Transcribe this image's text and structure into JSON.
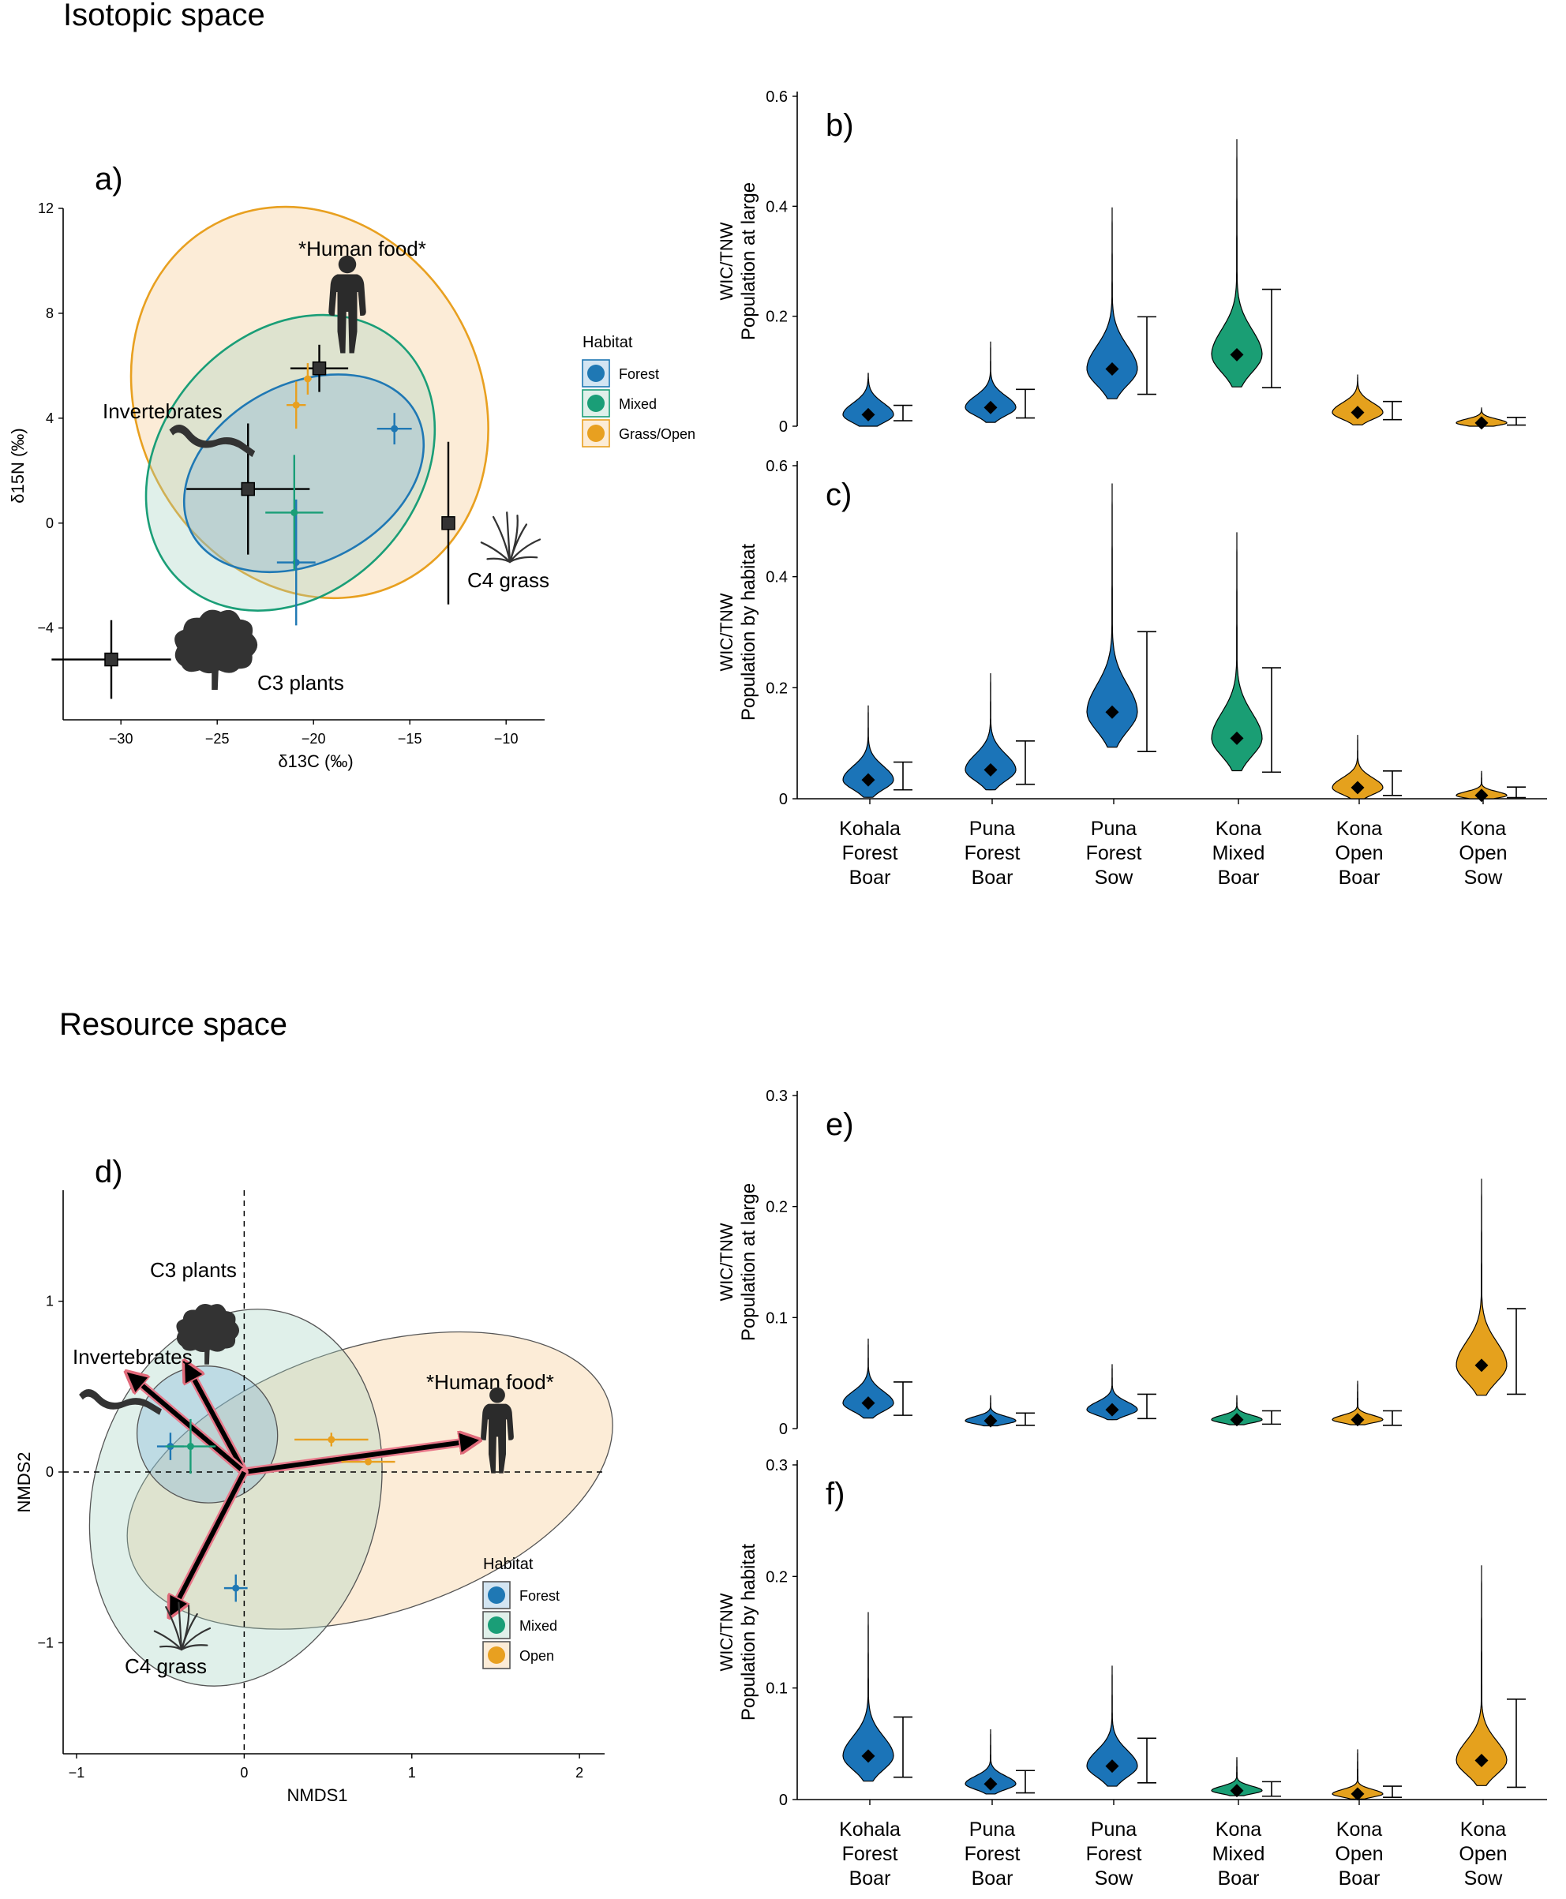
{
  "sections": {
    "isotopic_title": "Isotopic space",
    "resource_title": "Resource space"
  },
  "colors": {
    "forest": "#1f78b4",
    "mixed": "#1a9e77",
    "open": "#e8a020",
    "violin_forest": "#1b74b8",
    "violin_mixed": "#1a9e74",
    "violin_open": "#e5a11d"
  },
  "chart_data": [
    {
      "id": "a",
      "type": "scatter",
      "panel_label": "a)",
      "xlabel": "δ13C (‰)",
      "ylabel": "δ15N (‰)",
      "xlim": [
        -33,
        -8
      ],
      "ylim": [
        -7.5,
        12
      ],
      "xticks": [
        "−30",
        "−25",
        "−20",
        "−15",
        "−10"
      ],
      "yticks": [
        "−4",
        "0",
        "4",
        "8",
        "12"
      ],
      "xtick_values": [
        -30,
        -25,
        -20,
        -15,
        -10
      ],
      "ytick_values": [
        -4,
        0,
        4,
        8,
        12
      ],
      "legend": {
        "title": "Habitat",
        "items": [
          "Forest",
          "Mixed",
          "Grass/Open"
        ]
      },
      "ellipses": [
        {
          "habitat": "open",
          "cx": -20.2,
          "cy": 4.6,
          "rx": 8.9,
          "ry": 7.7,
          "angle": 28
        },
        {
          "habitat": "mixed",
          "cx": -21.2,
          "cy": 2.3,
          "rx": 8.4,
          "ry": 4.9,
          "angle": 48
        },
        {
          "habitat": "forest",
          "cx": -20.5,
          "cy": 1.9,
          "rx": 6.6,
          "ry": 3.4,
          "angle": 28
        }
      ],
      "sources": [
        {
          "name": "*Human food*",
          "x": -19.7,
          "y": 5.9,
          "xerr": 1.5,
          "yerr": 0.9
        },
        {
          "name": "Invertebrates",
          "x": -23.4,
          "y": 1.3,
          "xerr": 3.2,
          "yerr": 2.5
        },
        {
          "name": "C4 grass",
          "x": -13.0,
          "y": 0.0,
          "xerr": 0.2,
          "yerr": 3.1
        },
        {
          "name": "C3 plants",
          "x": -30.5,
          "y": -5.2,
          "xerr": 3.1,
          "yerr": 1.5
        }
      ],
      "points": [
        {
          "habitat": "forest",
          "x": -15.8,
          "y": 3.6,
          "xerr": 0.9,
          "yerr": 0.6
        },
        {
          "habitat": "forest",
          "x": -20.9,
          "y": -1.5,
          "xerr": 1.0,
          "yerr": 2.4
        },
        {
          "habitat": "mixed",
          "x": -21.0,
          "y": 0.4,
          "xerr": 1.5,
          "yerr": 2.2
        },
        {
          "habitat": "open",
          "x": -20.9,
          "y": 4.5,
          "xerr": 0.5,
          "yerr": 0.9
        },
        {
          "habitat": "open",
          "x": -20.3,
          "y": 5.5,
          "xerr": 0.2,
          "yerr": 0.6
        }
      ]
    },
    {
      "id": "b",
      "type": "violin",
      "panel_label": "b)",
      "ylabel_line1": "WIC/TNW",
      "ylabel_line2": "Population at large",
      "ylim": [
        0,
        0.6
      ],
      "yticks": [
        "0",
        "0.2",
        "0.4",
        "0.6"
      ],
      "ytick_values": [
        0,
        0.2,
        0.4,
        0.6
      ],
      "groups": [
        {
          "habitat": "forest",
          "median": 0.021,
          "max": 0.097,
          "lo": 0.01,
          "hi": 0.038,
          "spread": 0.06
        },
        {
          "habitat": "forest",
          "median": 0.034,
          "max": 0.154,
          "lo": 0.015,
          "hi": 0.067,
          "spread": 0.06
        },
        {
          "habitat": "forest",
          "median": 0.104,
          "max": 0.398,
          "lo": 0.058,
          "hi": 0.199,
          "spread": 0.12
        },
        {
          "habitat": "mixed",
          "median": 0.13,
          "max": 0.522,
          "lo": 0.07,
          "hi": 0.249,
          "spread": 0.13
        },
        {
          "habitat": "open",
          "median": 0.025,
          "max": 0.094,
          "lo": 0.012,
          "hi": 0.045,
          "spread": 0.05
        },
        {
          "habitat": "open",
          "median": 0.006,
          "max": 0.034,
          "lo": 0.002,
          "hi": 0.016,
          "spread": 0.02
        }
      ]
    },
    {
      "id": "c",
      "type": "violin",
      "panel_label": "c)",
      "ylabel_line1": "WIC/TNW",
      "ylabel_line2": "Population by habitat",
      "ylim": [
        0,
        0.6
      ],
      "yticks": [
        "0",
        "0.2",
        "0.4",
        "0.6"
      ],
      "ytick_values": [
        0,
        0.2,
        0.4,
        0.6
      ],
      "categories": [
        "Kohala\nForest\nBoar",
        "Puna\nForest\nBoar",
        "Puna\nForest\nSow",
        "Kona\nMixed\nBoar",
        "Kona\nOpen\nBoar",
        "Kona\nOpen\nSow"
      ],
      "groups": [
        {
          "habitat": "forest",
          "median": 0.034,
          "max": 0.168,
          "lo": 0.016,
          "hi": 0.066,
          "spread": 0.07
        },
        {
          "habitat": "forest",
          "median": 0.052,
          "max": 0.226,
          "lo": 0.026,
          "hi": 0.104,
          "spread": 0.08
        },
        {
          "habitat": "forest",
          "median": 0.156,
          "max": 0.568,
          "lo": 0.085,
          "hi": 0.301,
          "spread": 0.14
        },
        {
          "habitat": "mixed",
          "median": 0.109,
          "max": 0.48,
          "lo": 0.048,
          "hi": 0.236,
          "spread": 0.13
        },
        {
          "habitat": "open",
          "median": 0.02,
          "max": 0.115,
          "lo": 0.006,
          "hi": 0.05,
          "spread": 0.05
        },
        {
          "habitat": "open",
          "median": 0.006,
          "max": 0.05,
          "lo": 0.002,
          "hi": 0.021,
          "spread": 0.02
        }
      ]
    },
    {
      "id": "d",
      "type": "scatter",
      "panel_label": "d)",
      "xlabel": "NMDS1",
      "ylabel": "NMDS2",
      "xlim": [
        -1.08,
        2.15
      ],
      "ylim": [
        -1.65,
        1.65
      ],
      "xticks": [
        "−1",
        "0",
        "1",
        "2"
      ],
      "yticks": [
        "−1",
        "0",
        "1"
      ],
      "xtick_values": [
        -1,
        0,
        1,
        2
      ],
      "ytick_values": [
        -1,
        0,
        1
      ],
      "legend": {
        "title": "Habitat",
        "items": [
          "Forest",
          "Mixed",
          "Open"
        ]
      },
      "ellipses": [
        {
          "habitat": "open",
          "cx": 0.75,
          "cy": -0.05,
          "rx": 1.5,
          "ry": 0.78,
          "angle": 18
        },
        {
          "habitat": "mixed",
          "cx": -0.05,
          "cy": -0.15,
          "rx": 0.85,
          "ry": 1.12,
          "angle": -15
        },
        {
          "habitat": "forest",
          "cx": -0.22,
          "cy": 0.22,
          "rx": 0.42,
          "ry": 0.4,
          "angle": -15
        }
      ],
      "arrows": [
        {
          "name": "C3 plants",
          "x": -0.33,
          "y": 0.6
        },
        {
          "name": "Invertebrates",
          "x": -0.66,
          "y": 0.55
        },
        {
          "name": "*Human food*",
          "x": 1.35,
          "y": 0.18
        },
        {
          "name": "C4 grass",
          "x": -0.42,
          "y": -0.8
        }
      ],
      "points": [
        {
          "habitat": "forest",
          "x": -0.44,
          "y": 0.15,
          "xerr": 0.08,
          "yerr": 0.08
        },
        {
          "habitat": "forest",
          "x": -0.05,
          "y": -0.68,
          "xerr": 0.07,
          "yerr": 0.08
        },
        {
          "habitat": "mixed",
          "x": -0.32,
          "y": 0.15,
          "xerr": 0.15,
          "yerr": 0.16
        },
        {
          "habitat": "open",
          "x": 0.52,
          "y": 0.19,
          "xerr": 0.22,
          "yerr": 0.04
        },
        {
          "habitat": "open",
          "x": 0.74,
          "y": 0.06,
          "xerr": 0.16,
          "yerr": 0.02
        }
      ]
    },
    {
      "id": "e",
      "type": "violin",
      "panel_label": "e)",
      "ylabel_line1": "WIC/TNW",
      "ylabel_line2": "Population at large",
      "ylim": [
        0,
        0.3
      ],
      "yticks": [
        "0",
        "0.1",
        "0.2",
        "0.3"
      ],
      "ytick_values": [
        0,
        0.1,
        0.2,
        0.3
      ],
      "groups": [
        {
          "habitat": "forest",
          "median": 0.023,
          "max": 0.081,
          "lo": 0.012,
          "hi": 0.042,
          "spread": 0.03
        },
        {
          "habitat": "forest",
          "median": 0.007,
          "max": 0.03,
          "lo": 0.003,
          "hi": 0.014,
          "spread": 0.01
        },
        {
          "habitat": "forest",
          "median": 0.017,
          "max": 0.058,
          "lo": 0.009,
          "hi": 0.031,
          "spread": 0.02
        },
        {
          "habitat": "mixed",
          "median": 0.008,
          "max": 0.03,
          "lo": 0.004,
          "hi": 0.016,
          "spread": 0.01
        },
        {
          "habitat": "open",
          "median": 0.008,
          "max": 0.043,
          "lo": 0.003,
          "hi": 0.016,
          "spread": 0.01
        },
        {
          "habitat": "open",
          "median": 0.057,
          "max": 0.225,
          "lo": 0.031,
          "hi": 0.108,
          "spread": 0.06
        }
      ]
    },
    {
      "id": "f",
      "type": "violin",
      "panel_label": "f)",
      "ylabel_line1": "WIC/TNW",
      "ylabel_line2": "Population by habitat",
      "ylim": [
        0,
        0.3
      ],
      "yticks": [
        "0",
        "0.1",
        "0.2",
        "0.3"
      ],
      "ytick_values": [
        0,
        0.1,
        0.2,
        0.3
      ],
      "categories": [
        "Kohala\nForest\nBoar",
        "Puna\nForest\nBoar",
        "Puna\nForest\nSow",
        "Kona\nMixed\nBoar",
        "Kona\nOpen\nBoar",
        "Kona\nOpen\nSow"
      ],
      "groups": [
        {
          "habitat": "forest",
          "median": 0.039,
          "max": 0.168,
          "lo": 0.02,
          "hi": 0.074,
          "spread": 0.05
        },
        {
          "habitat": "forest",
          "median": 0.014,
          "max": 0.063,
          "lo": 0.006,
          "hi": 0.026,
          "spread": 0.02
        },
        {
          "habitat": "forest",
          "median": 0.03,
          "max": 0.12,
          "lo": 0.015,
          "hi": 0.055,
          "spread": 0.04
        },
        {
          "habitat": "mixed",
          "median": 0.008,
          "max": 0.038,
          "lo": 0.003,
          "hi": 0.016,
          "spread": 0.01
        },
        {
          "habitat": "open",
          "median": 0.005,
          "max": 0.045,
          "lo": 0.002,
          "hi": 0.012,
          "spread": 0.01
        },
        {
          "habitat": "open",
          "median": 0.035,
          "max": 0.21,
          "lo": 0.011,
          "hi": 0.09,
          "spread": 0.05
        }
      ]
    }
  ]
}
